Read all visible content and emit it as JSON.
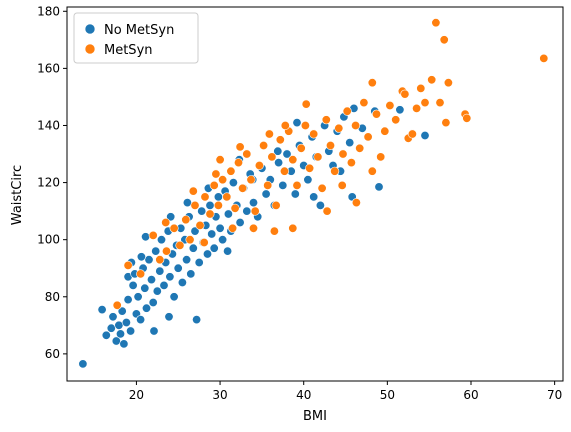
{
  "chart_data": {
    "type": "scatter",
    "xlabel": "BMI",
    "ylabel": "WaistCirc",
    "xlim": [
      11.7,
      71.0
    ],
    "ylim": [
      50.5,
      181.5
    ],
    "xticks": [
      20,
      30,
      40,
      50,
      60,
      70
    ],
    "yticks": [
      60,
      80,
      100,
      120,
      140,
      160,
      180
    ],
    "grid": false,
    "legend_position": "top-left",
    "series": [
      {
        "name": "No MetSyn",
        "color": "#1f77b4",
        "points": [
          [
            13.6,
            56.5
          ],
          [
            15.9,
            75.5
          ],
          [
            16.4,
            66.5
          ],
          [
            17.0,
            69.0
          ],
          [
            17.2,
            73.0
          ],
          [
            17.6,
            64.5
          ],
          [
            17.9,
            70.0
          ],
          [
            18.1,
            67.0
          ],
          [
            18.3,
            75.0
          ],
          [
            18.5,
            63.5
          ],
          [
            18.8,
            71.0
          ],
          [
            19.0,
            79.0
          ],
          [
            19.0,
            87.0
          ],
          [
            19.3,
            68.0
          ],
          [
            19.6,
            84.0
          ],
          [
            19.8,
            88.0
          ],
          [
            20.0,
            74.0
          ],
          [
            20.2,
            80.0
          ],
          [
            20.5,
            72.0
          ],
          [
            20.8,
            90.0
          ],
          [
            21.0,
            83.0
          ],
          [
            21.2,
            76.0
          ],
          [
            21.5,
            93.0
          ],
          [
            21.8,
            86.0
          ],
          [
            22.0,
            78.0
          ],
          [
            22.3,
            96.0
          ],
          [
            22.5,
            82.0
          ],
          [
            22.8,
            89.0
          ],
          [
            23.0,
            100.0
          ],
          [
            23.3,
            84.0
          ],
          [
            23.5,
            92.0
          ],
          [
            23.8,
            103.0
          ],
          [
            24.0,
            87.0
          ],
          [
            24.3,
            95.0
          ],
          [
            24.5,
            80.0
          ],
          [
            24.8,
            98.0
          ],
          [
            25.0,
            90.0
          ],
          [
            25.3,
            104.0
          ],
          [
            25.5,
            85.0
          ],
          [
            25.8,
            100.0
          ],
          [
            26.0,
            93.0
          ],
          [
            26.3,
            108.0
          ],
          [
            26.5,
            88.0
          ],
          [
            26.8,
            97.0
          ],
          [
            27.0,
            103.0
          ],
          [
            27.2,
            72.0
          ],
          [
            27.5,
            92.0
          ],
          [
            27.8,
            110.0
          ],
          [
            28.0,
            99.0
          ],
          [
            28.3,
            105.0
          ],
          [
            28.5,
            95.0
          ],
          [
            28.8,
            112.0
          ],
          [
            29.0,
            102.0
          ],
          [
            29.3,
            97.0
          ],
          [
            29.5,
            108.0
          ],
          [
            29.8,
            115.0
          ],
          [
            30.0,
            104.0
          ],
          [
            30.3,
            100.0
          ],
          [
            30.6,
            117.0
          ],
          [
            31.0,
            109.0
          ],
          [
            31.3,
            103.0
          ],
          [
            31.6,
            120.0
          ],
          [
            32.0,
            112.0
          ],
          [
            32.4,
            106.0
          ],
          [
            32.8,
            118.0
          ],
          [
            33.2,
            110.0
          ],
          [
            33.6,
            123.0
          ],
          [
            34.0,
            113.0
          ],
          [
            34.5,
            108.0
          ],
          [
            35.0,
            125.0
          ],
          [
            35.5,
            116.0
          ],
          [
            36.0,
            121.0
          ],
          [
            36.5,
            112.0
          ],
          [
            37.0,
            127.0
          ],
          [
            37.5,
            119.0
          ],
          [
            38.0,
            130.0
          ],
          [
            38.5,
            124.0
          ],
          [
            39.0,
            116.0
          ],
          [
            39.5,
            133.0
          ],
          [
            40.0,
            126.0
          ],
          [
            40.5,
            121.0
          ],
          [
            41.0,
            136.0
          ],
          [
            41.5,
            129.0
          ],
          [
            42.0,
            112.0
          ],
          [
            42.5,
            140.0
          ],
          [
            43.0,
            131.0
          ],
          [
            43.5,
            126.0
          ],
          [
            44.0,
            138.0
          ],
          [
            44.8,
            143.0
          ],
          [
            45.5,
            134.0
          ],
          [
            46.0,
            146.0
          ],
          [
            45.8,
            115.0
          ],
          [
            47.0,
            139.0
          ],
          [
            48.5,
            145.0
          ],
          [
            49.0,
            118.5
          ],
          [
            51.5,
            145.5
          ],
          [
            54.5,
            136.5
          ],
          [
            20.6,
            94.0
          ],
          [
            22.1,
            68.0
          ],
          [
            23.9,
            73.0
          ],
          [
            19.4,
            92.0
          ],
          [
            21.1,
            101.0
          ],
          [
            26.1,
            113.0
          ],
          [
            30.9,
            96.0
          ],
          [
            33.9,
            121.0
          ],
          [
            36.9,
            131.0
          ],
          [
            28.6,
            118.0
          ],
          [
            41.2,
            115.0
          ],
          [
            24.1,
            108.0
          ],
          [
            32.3,
            128.0
          ],
          [
            39.2,
            141.0
          ],
          [
            44.4,
            124.0
          ]
        ]
      },
      {
        "name": "MetSyn",
        "color": "#ff7f0e",
        "points": [
          [
            17.7,
            77.0
          ],
          [
            19.0,
            91.0
          ],
          [
            20.5,
            88.0
          ],
          [
            22.0,
            101.5
          ],
          [
            22.8,
            93.0
          ],
          [
            23.6,
            96.0
          ],
          [
            24.5,
            104.0
          ],
          [
            25.2,
            98.0
          ],
          [
            25.9,
            107.0
          ],
          [
            26.4,
            100.0
          ],
          [
            27.0,
            112.0
          ],
          [
            27.6,
            105.0
          ],
          [
            28.2,
            115.0
          ],
          [
            28.8,
            109.0
          ],
          [
            29.3,
            119.0
          ],
          [
            29.8,
            112.0
          ],
          [
            30.3,
            121.0
          ],
          [
            30.8,
            115.0
          ],
          [
            31.3,
            124.0
          ],
          [
            31.8,
            111.0
          ],
          [
            32.2,
            127.0
          ],
          [
            32.7,
            118.0
          ],
          [
            33.2,
            130.0
          ],
          [
            33.7,
            121.0
          ],
          [
            34.2,
            110.0
          ],
          [
            34.7,
            126.0
          ],
          [
            35.2,
            133.0
          ],
          [
            35.7,
            119.0
          ],
          [
            36.2,
            129.0
          ],
          [
            36.7,
            112.0
          ],
          [
            37.2,
            135.0
          ],
          [
            37.7,
            124.0
          ],
          [
            38.2,
            138.0
          ],
          [
            38.7,
            128.0
          ],
          [
            39.2,
            119.0
          ],
          [
            39.7,
            132.0
          ],
          [
            40.2,
            140.0
          ],
          [
            40.7,
            125.0
          ],
          [
            41.2,
            137.0
          ],
          [
            41.7,
            129.0
          ],
          [
            42.2,
            118.0
          ],
          [
            42.7,
            142.0
          ],
          [
            43.2,
            133.0
          ],
          [
            43.7,
            124.0
          ],
          [
            44.2,
            139.0
          ],
          [
            44.7,
            130.0
          ],
          [
            45.2,
            145.0
          ],
          [
            45.7,
            127.0
          ],
          [
            46.2,
            140.0
          ],
          [
            46.7,
            132.0
          ],
          [
            47.2,
            148.0
          ],
          [
            47.7,
            136.0
          ],
          [
            48.2,
            155.0
          ],
          [
            48.7,
            144.0
          ],
          [
            49.2,
            129.0
          ],
          [
            49.7,
            138.0
          ],
          [
            50.3,
            147.0
          ],
          [
            51.0,
            142.0
          ],
          [
            51.8,
            152.0
          ],
          [
            52.5,
            135.5
          ],
          [
            53.0,
            137.0
          ],
          [
            53.5,
            146.0
          ],
          [
            54.0,
            153.0
          ],
          [
            54.5,
            148.0
          ],
          [
            55.3,
            156.0
          ],
          [
            55.8,
            176.0
          ],
          [
            56.3,
            148.0
          ],
          [
            56.8,
            170.0
          ],
          [
            57.3,
            155.0
          ],
          [
            57.0,
            141.0
          ],
          [
            59.3,
            144.0
          ],
          [
            59.5,
            142.5
          ],
          [
            68.7,
            163.5
          ],
          [
            32.4,
            132.5
          ],
          [
            40.3,
            147.5
          ],
          [
            36.5,
            103.0
          ],
          [
            34.0,
            104.0
          ],
          [
            38.7,
            104.0
          ],
          [
            26.8,
            117.0
          ],
          [
            23.5,
            106.0
          ],
          [
            30.0,
            128.0
          ],
          [
            42.8,
            110.0
          ],
          [
            46.3,
            113.0
          ],
          [
            48.2,
            124.0
          ],
          [
            31.5,
            104.0
          ],
          [
            28.1,
            99.0
          ],
          [
            44.6,
            119.0
          ],
          [
            52.1,
            151.0
          ],
          [
            35.9,
            137.0
          ],
          [
            37.8,
            140.0
          ],
          [
            29.5,
            123.0
          ]
        ]
      }
    ]
  }
}
